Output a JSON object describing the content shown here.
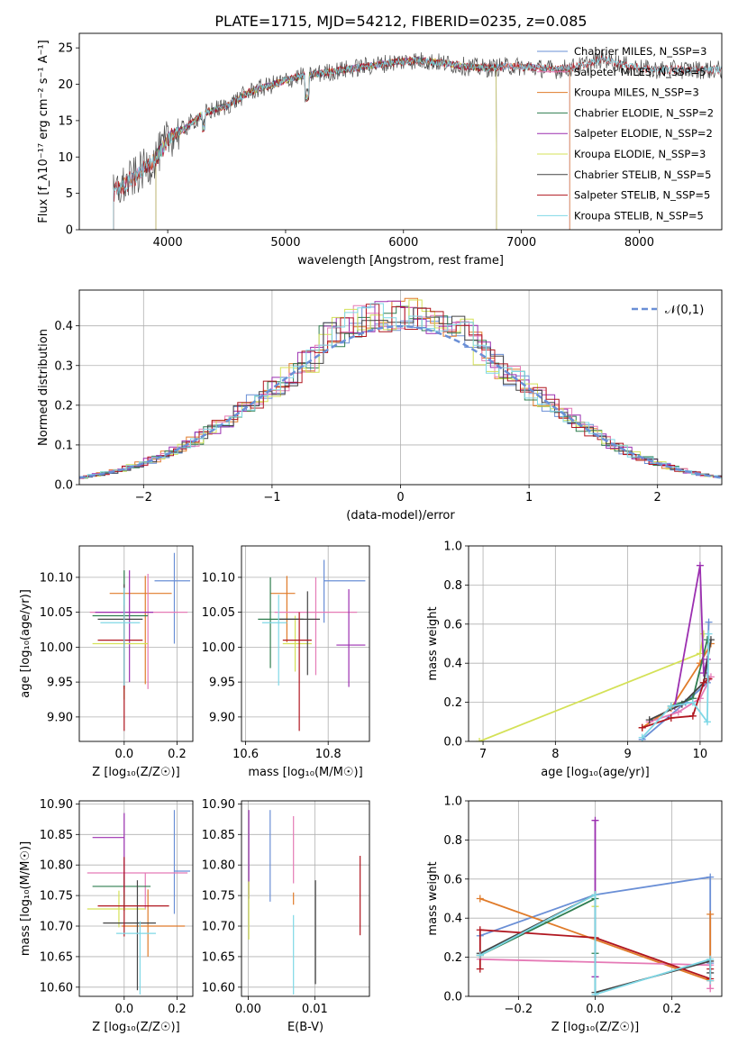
{
  "figure_title": "PLATE=1715, MJD=54212, FIBERID=0235, z=0.085",
  "colors": {
    "c1": "#6a8fd6",
    "c2": "#e07b2a",
    "c3": "#2f7d4f",
    "c4": "#9b2fb0",
    "c5": "#e57ab6",
    "c6": "#d4e157",
    "c7": "#444444",
    "c8": "#b0161f",
    "c9": "#7fd8e6"
  },
  "chart_data": [
    {
      "id": "spectrum",
      "type": "line",
      "xlabel": "wavelength [Angstrom, rest frame]",
      "ylabel": "Flux [f_λ10⁻¹⁷ erg cm⁻² s⁻¹ A⁻¹]",
      "xlim": [
        3250,
        8700
      ],
      "ylim": [
        0,
        27
      ],
      "xticks": [
        4000,
        5000,
        6000,
        7000,
        8000
      ],
      "yticks": [
        0,
        5,
        10,
        15,
        20,
        25
      ],
      "grid": false,
      "legend_position": "top-right",
      "series": [
        {
          "name": "Chabrier MILES, N_SSP=3",
          "color": "#6a8fd6",
          "x": [
            3540,
            7410
          ]
        },
        {
          "name": "Salpeter MILES, N_SSP=5",
          "color": "#e57ab6",
          "x": [
            3540,
            7410
          ]
        },
        {
          "name": "Kroupa MILES, N_SSP=3",
          "color": "#e07b2a",
          "x": [
            3540,
            7410
          ]
        },
        {
          "name": "Chabrier ELODIE, N_SSP=2",
          "color": "#2f7d4f",
          "x": [
            3900,
            6790
          ]
        },
        {
          "name": "Salpeter ELODIE, N_SSP=2",
          "color": "#9b2fb0",
          "x": [
            3900,
            6790
          ]
        },
        {
          "name": "Kroupa ELODIE, N_SSP=3",
          "color": "#d4e157",
          "x": [
            3900,
            6790
          ]
        },
        {
          "name": "Chabrier STELIB, N_SSP=5",
          "color": "#444444",
          "x": [
            3540,
            8700
          ]
        },
        {
          "name": "Salpeter STELIB, N_SSP=5",
          "color": "#b0161f",
          "x": [
            3540,
            8700
          ]
        },
        {
          "name": "Kroupa STELIB, N_SSP=5",
          "color": "#7fd8e6",
          "x": [
            3540,
            8700
          ]
        }
      ],
      "model_curve": {
        "x": [
          3540,
          3700,
          3850,
          3950,
          4000,
          4150,
          4300,
          4500,
          4700,
          4900,
          5100,
          5300,
          5500,
          5700,
          5900,
          6100,
          6300,
          6500,
          6700,
          6900,
          7100,
          7300,
          7500,
          7700,
          7900,
          8100,
          8300,
          8400
        ],
        "y": [
          5,
          7,
          9,
          11,
          12.5,
          14,
          16,
          17,
          19,
          20,
          21,
          21.5,
          22,
          22.5,
          23,
          23.3,
          23,
          22.5,
          22.2,
          22.5,
          22.3,
          22,
          22.5,
          23.5,
          22.5,
          22,
          22,
          22
        ]
      }
    },
    {
      "id": "residuals",
      "type": "step",
      "xlabel": "(data-model)/error",
      "ylabel": "Normed distribution",
      "xlim": [
        -2.5,
        2.5
      ],
      "ylim": [
        0,
        0.49
      ],
      "xticks": [
        -2,
        -1,
        0,
        1,
        2
      ],
      "yticks": [
        0.0,
        0.1,
        0.2,
        0.3,
        0.4
      ],
      "grid": true,
      "legend_position": "top-right",
      "reference_curve": {
        "name": "𝒩(0,1)",
        "color": "#6a8fd6",
        "style": "dashed"
      }
    },
    {
      "id": "age_vs_Z",
      "type": "errorbar",
      "xlabel": "Z [log₁₀(Z/Z☉)]",
      "ylabel": "age  [log₁₀(age/yr)]",
      "xlim": [
        -0.17,
        0.26
      ],
      "ylim": [
        9.865,
        10.145
      ],
      "xticks": [
        0.0,
        0.2
      ],
      "yticks": [
        9.9,
        9.95,
        10.0,
        10.05,
        10.1
      ],
      "grid": true,
      "points": [
        {
          "color": "#6a8fd6",
          "x": 0.19,
          "y": 10.095,
          "xerr": [
            0.075,
            0.06
          ],
          "yerr": [
            0.09,
            0.04
          ]
        },
        {
          "color": "#e07b2a",
          "x": 0.08,
          "y": 10.077,
          "xerr": [
            0.135,
            0.1
          ],
          "yerr": [
            0.13,
            0.025
          ]
        },
        {
          "color": "#e57ab6",
          "x": 0.09,
          "y": 10.05,
          "xerr": [
            0.22,
            0.15
          ],
          "yerr": [
            0.11,
            0.055
          ]
        },
        {
          "color": "#2f7d4f",
          "x": 0.0,
          "y": 10.045,
          "xerr": [
            0.12,
            0.09
          ],
          "yerr": [
            0.12,
            0.065
          ]
        },
        {
          "color": "#9b2fb0",
          "x": 0.02,
          "y": 10.05,
          "xerr": [
            0.13,
            0.09
          ],
          "yerr": [
            0.1,
            0.06
          ]
        },
        {
          "color": "#d4e157",
          "x": 0.0,
          "y": 10.005,
          "xerr": [
            0.12,
            0.09
          ],
          "yerr": [
            0.08,
            0.04
          ]
        },
        {
          "color": "#444444",
          "x": 0.0,
          "y": 10.04,
          "xerr": [
            0.1,
            0.07
          ],
          "yerr": [
            0.1,
            0.05
          ]
        },
        {
          "color": "#b0161f",
          "x": 0.0,
          "y": 10.01,
          "xerr": [
            0.1,
            0.07
          ],
          "yerr": [
            0.13,
            0.05
          ]
        },
        {
          "color": "#7fd8e6",
          "x": 0.0,
          "y": 10.035,
          "xerr": [
            0.09,
            0.06
          ],
          "yerr": [
            0.09,
            0.05
          ]
        }
      ]
    },
    {
      "id": "age_vs_mass",
      "type": "errorbar",
      "xlabel": "mass [log₁₀(M/M☉)]",
      "ylabel": "",
      "xlim": [
        10.59,
        10.9
      ],
      "ylim": [
        9.865,
        10.145
      ],
      "xticks": [
        10.6,
        10.8
      ],
      "yticks": [
        9.9,
        9.95,
        10.0,
        10.05,
        10.1
      ],
      "grid": true,
      "points": [
        {
          "color": "#6a8fd6",
          "x": 10.79,
          "y": 10.095,
          "xerr": [
            0.0,
            0.1
          ],
          "yerr": [
            0.06,
            0.03
          ]
        },
        {
          "color": "#e07b2a",
          "x": 10.7,
          "y": 10.077,
          "xerr": [
            0.04,
            0.02
          ],
          "yerr": [
            0.07,
            0.025
          ]
        },
        {
          "color": "#e57ab6",
          "x": 10.77,
          "y": 10.05,
          "xerr": [
            0.1,
            0.1
          ],
          "yerr": [
            0.09,
            0.05
          ]
        },
        {
          "color": "#2f7d4f",
          "x": 10.66,
          "y": 10.04,
          "xerr": [
            0.03,
            0.08
          ],
          "yerr": [
            0.07,
            0.06
          ]
        },
        {
          "color": "#9b2fb0",
          "x": 10.85,
          "y": 10.003,
          "xerr": [
            0.03,
            0.04
          ],
          "yerr": [
            0.06,
            0.08
          ]
        },
        {
          "color": "#d4e157",
          "x": 10.72,
          "y": 10.005,
          "xerr": [
            0.03,
            0.04
          ],
          "yerr": [
            0.04,
            0.04
          ]
        },
        {
          "color": "#444444",
          "x": 10.75,
          "y": 10.04,
          "xerr": [
            0.07,
            0.03
          ],
          "yerr": [
            0.08,
            0.04
          ]
        },
        {
          "color": "#b0161f",
          "x": 10.73,
          "y": 10.01,
          "xerr": [
            0.04,
            0.03
          ],
          "yerr": [
            0.13,
            0.04
          ]
        },
        {
          "color": "#7fd8e6",
          "x": 10.68,
          "y": 10.035,
          "xerr": [
            0.04,
            0.02
          ],
          "yerr": [
            0.09,
            0.04
          ]
        }
      ]
    },
    {
      "id": "weight_vs_age",
      "type": "line",
      "xlabel": "age  [log₁₀(age/yr)]",
      "ylabel": "mass weight",
      "xlim": [
        6.8,
        10.3
      ],
      "ylim": [
        0,
        1
      ],
      "xticks": [
        7,
        8,
        9,
        10
      ],
      "yticks": [
        0.0,
        0.2,
        0.4,
        0.6,
        0.8,
        1.0
      ],
      "grid": true,
      "series": [
        {
          "color": "#d4e157",
          "x": [
            6.95,
            10.0,
            10.05
          ],
          "y": [
            0.0,
            0.45,
            0.55
          ]
        },
        {
          "color": "#6a8fd6",
          "x": [
            9.2,
            9.8,
            10.1,
            10.12
          ],
          "y": [
            0.01,
            0.2,
            0.3,
            0.61
          ]
        },
        {
          "color": "#e07b2a",
          "x": [
            9.2,
            9.6,
            10.0,
            10.15
          ],
          "y": [
            0.07,
            0.17,
            0.4,
            0.5
          ]
        },
        {
          "color": "#e57ab6",
          "x": [
            9.3,
            9.7,
            10.0,
            10.15
          ],
          "y": [
            0.1,
            0.15,
            0.22,
            0.33
          ]
        },
        {
          "color": "#2f7d4f",
          "x": [
            9.6,
            9.9,
            10.1
          ],
          "y": [
            0.18,
            0.22,
            0.52
          ]
        },
        {
          "color": "#9b2fb0",
          "x": [
            9.65,
            10.0,
            10.05,
            10.1
          ],
          "y": [
            0.18,
            0.9,
            0.35,
            0.42
          ]
        },
        {
          "color": "#444444",
          "x": [
            9.3,
            9.75,
            10.05,
            10.15
          ],
          "y": [
            0.11,
            0.19,
            0.3,
            0.52
          ]
        },
        {
          "color": "#b0161f",
          "x": [
            9.2,
            9.6,
            9.9,
            10.05,
            10.12
          ],
          "y": [
            0.07,
            0.12,
            0.13,
            0.3,
            0.32
          ]
        },
        {
          "color": "#7fd8e6",
          "x": [
            9.2,
            9.6,
            9.9,
            10.1,
            10.12
          ],
          "y": [
            0.02,
            0.18,
            0.2,
            0.1,
            0.55
          ]
        }
      ]
    },
    {
      "id": "mass_vs_Z",
      "type": "errorbar",
      "xlabel": "Z [log₁₀(Z/Z☉)]",
      "ylabel": "mass [log₁₀(M/M☉)]",
      "xlim": [
        -0.17,
        0.26
      ],
      "ylim": [
        10.585,
        10.905
      ],
      "xticks": [
        0.0,
        0.2
      ],
      "yticks": [
        10.6,
        10.65,
        10.7,
        10.75,
        10.8,
        10.85,
        10.9
      ],
      "grid": true,
      "points": [
        {
          "color": "#6a8fd6",
          "x": 0.19,
          "y": 10.79,
          "xerr": [
            0.0,
            0.06
          ],
          "yerr": [
            0.07,
            0.1
          ]
        },
        {
          "color": "#e07b2a",
          "x": 0.09,
          "y": 10.7,
          "xerr": [
            0.1,
            0.14
          ],
          "yerr": [
            0.05,
            0.06
          ]
        },
        {
          "color": "#e57ab6",
          "x": 0.08,
          "y": 10.787,
          "xerr": [
            0.22,
            0.16
          ],
          "yerr": [
            0.06,
            0.0
          ]
        },
        {
          "color": "#2f7d4f",
          "x": 0.0,
          "y": 10.765,
          "xerr": [
            0.12,
            0.1
          ],
          "yerr": [
            0.04,
            0.02
          ]
        },
        {
          "color": "#9b2fb0",
          "x": 0.0,
          "y": 10.845,
          "xerr": [
            0.12,
            0.0
          ],
          "yerr": [
            0.09,
            0.04
          ]
        },
        {
          "color": "#d4e157",
          "x": -0.02,
          "y": 10.728,
          "xerr": [
            0.12,
            0.1
          ],
          "yerr": [
            0.03,
            0.03
          ]
        },
        {
          "color": "#444444",
          "x": 0.05,
          "y": 10.705,
          "xerr": [
            0.13,
            0.07
          ],
          "yerr": [
            0.11,
            0.07
          ]
        },
        {
          "color": "#b0161f",
          "x": 0.0,
          "y": 10.733,
          "xerr": [
            0.1,
            0.17
          ],
          "yerr": [
            0.05,
            0.08
          ]
        },
        {
          "color": "#7fd8e6",
          "x": 0.06,
          "y": 10.688,
          "xerr": [
            0.09,
            0.06
          ],
          "yerr": [
            0.1,
            0.02
          ]
        }
      ]
    },
    {
      "id": "mass_vs_ebv",
      "type": "errorbar",
      "xlabel": "E(B-V)",
      "ylabel": "",
      "xlim": [
        -0.001,
        0.0182
      ],
      "ylim": [
        10.585,
        10.905
      ],
      "xticks": [
        0.0,
        0.01
      ],
      "yticks": [
        10.6,
        10.65,
        10.7,
        10.75,
        10.8,
        10.85,
        10.9
      ],
      "grid": true,
      "points": [
        {
          "color": "#9b2fb0",
          "x": 0.0001,
          "y": 10.845,
          "yerr": [
            0.1,
            0.045
          ]
        },
        {
          "color": "#6a8fd6",
          "x": 0.0033,
          "y": 10.81,
          "yerr": [
            0.07,
            0.08
          ]
        },
        {
          "color": "#e57ab6",
          "x": 0.0068,
          "y": 10.83,
          "yerr": [
            0.06,
            0.05
          ]
        },
        {
          "color": "#e07b2a",
          "x": 0.0068,
          "y": 10.745,
          "yerr": [
            0.01,
            0.01
          ]
        },
        {
          "color": "#d4e157",
          "x": 0.0001,
          "y": 10.728,
          "yerr": [
            0.05,
            0.045
          ]
        },
        {
          "color": "#7fd8e6",
          "x": 0.0068,
          "y": 10.688,
          "yerr": [
            0.1,
            0.03
          ]
        },
        {
          "color": "#444444",
          "x": 0.0101,
          "y": 10.705,
          "yerr": [
            0.1,
            0.07
          ]
        },
        {
          "color": "#b0161f",
          "x": 0.0168,
          "y": 10.75,
          "yerr": [
            0.065,
            0.065
          ]
        }
      ]
    },
    {
      "id": "weight_vs_Z",
      "type": "line",
      "xlabel": "Z [log₁₀(Z/Z☉)]",
      "ylabel": "mass weight",
      "xlim": [
        -0.33,
        0.33
      ],
      "ylim": [
        0,
        1
      ],
      "xticks": [
        -0.2,
        0.0,
        0.2
      ],
      "yticks": [
        0.0,
        0.2,
        0.4,
        0.6,
        0.8,
        1.0
      ],
      "grid": true,
      "series": [
        {
          "color": "#6a8fd6",
          "x": [
            -0.3,
            0.0,
            0.3,
            0.3
          ],
          "y": [
            0.31,
            0.52,
            0.61,
            0.17
          ]
        },
        {
          "color": "#e07b2a",
          "x": [
            -0.3,
            0.3,
            0.3
          ],
          "y": [
            0.5,
            0.08,
            0.42
          ]
        },
        {
          "color": "#e57ab6",
          "x": [
            -0.3,
            0.3,
            0.3
          ],
          "y": [
            0.19,
            0.16,
            0.04
          ]
        },
        {
          "color": "#2f7d4f",
          "x": [
            -0.3,
            0.0,
            0.0
          ],
          "y": [
            0.21,
            0.5,
            0.22
          ]
        },
        {
          "color": "#9b2fb0",
          "x": [
            0.0,
            0.0,
            0.0
          ],
          "y": [
            0.9,
            0.1,
            0.52
          ]
        },
        {
          "color": "#d4e157",
          "x": [
            0.0,
            0.0
          ],
          "y": [
            0.52,
            0.46
          ]
        },
        {
          "color": "#444444",
          "x": [
            -0.3,
            0.0,
            0.0,
            0.3,
            0.3
          ],
          "y": [
            0.22,
            0.52,
            0.02,
            0.18,
            0.12
          ]
        },
        {
          "color": "#b0161f",
          "x": [
            -0.3,
            -0.3,
            0.0,
            0.3,
            0.3
          ],
          "y": [
            0.14,
            0.34,
            0.3,
            0.09,
            0.14
          ]
        },
        {
          "color": "#7fd8e6",
          "x": [
            -0.3,
            0.0,
            0.0,
            0.3,
            0.3
          ],
          "y": [
            0.21,
            0.52,
            0.01,
            0.19,
            0.08
          ]
        }
      ]
    }
  ]
}
